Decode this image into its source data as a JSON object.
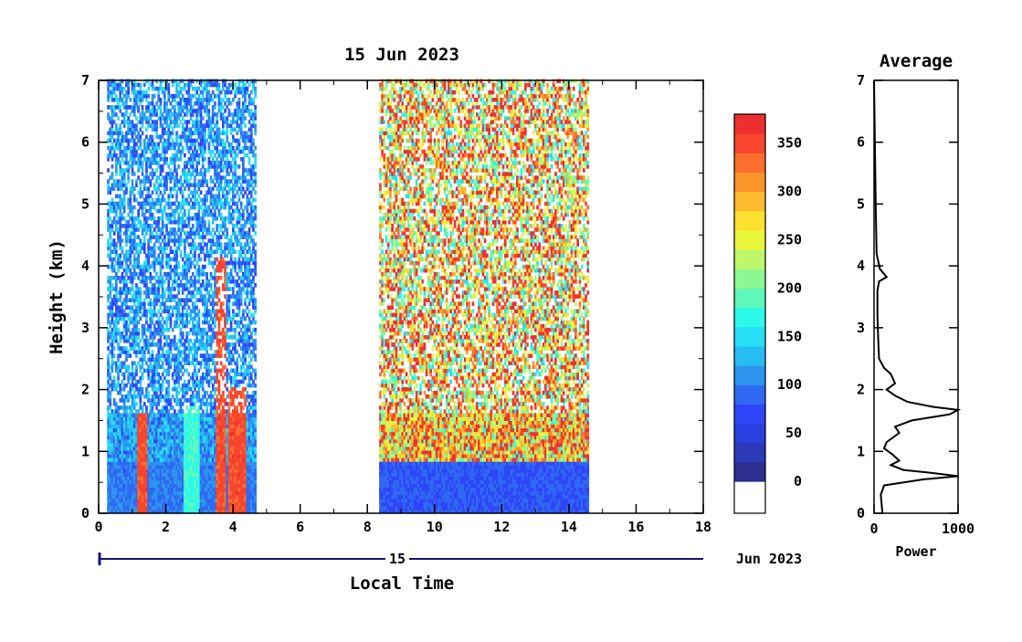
{
  "colors": {
    "bins": [
      "#2c2f8e",
      "#2b3ab6",
      "#2b3ee0",
      "#2f46f8",
      "#2f69f2",
      "#2d94f0",
      "#27bdf2",
      "#27dff4",
      "#2cf9e9",
      "#5ef9b9",
      "#8df891",
      "#bdf86a",
      "#e9f63c",
      "#fbe12e",
      "#fbbb2c",
      "#fb942b",
      "#fb6e2d",
      "#f7452e",
      "#ee2f30"
    ],
    "zero": "#ffffff",
    "axis": "#000000",
    "accent": "#16166e"
  },
  "chart_data": [
    {
      "type": "heatmap",
      "title": "15 Jun 2023",
      "xlabel": "Local Time",
      "ylabel": "Height (km)",
      "xlim": [
        0,
        18
      ],
      "ylim": [
        0,
        7
      ],
      "x_ticks": [
        "0",
        "2",
        "4",
        "6",
        "8",
        "10",
        "12",
        "14",
        "16",
        "18"
      ],
      "y_ticks": [
        "0",
        "1",
        "2",
        "3",
        "4",
        "5",
        "6",
        "7"
      ],
      "date_axis": {
        "day_label": "15",
        "month_label": "Jun 2023"
      },
      "data_segments": [
        {
          "x_start": 0.25,
          "x_end": 4.65,
          "surface_level": 60,
          "upper_level": 110,
          "note_cloud": "low"
        },
        {
          "x_start": 8.35,
          "x_end": 14.55,
          "surface_level": 40,
          "upper_level": 320
        }
      ],
      "features": [
        {
          "x_start": 1.1,
          "x_end": 1.45,
          "y_top": 1.6,
          "level": 360
        },
        {
          "x_start": 3.45,
          "x_end": 3.75,
          "y_top": 4.1,
          "level": 360
        },
        {
          "x_start": 3.85,
          "x_end": 4.35,
          "y_top": 2.0,
          "level": 360
        },
        {
          "x_start": 2.5,
          "x_end": 3.0,
          "y_top": 1.7,
          "level": 180
        }
      ],
      "colorbar": {
        "ticks": [
          "0",
          "50",
          "100",
          "150",
          "200",
          "250",
          "300",
          "350"
        ],
        "range": [
          -25,
          380
        ]
      }
    },
    {
      "type": "line",
      "title": "Average",
      "xlabel": "Power",
      "xlim": [
        0,
        1000
      ],
      "ylim": [
        0,
        7
      ],
      "x_ticks": [
        "0",
        "1000"
      ],
      "y_ticks": [
        "0",
        "1",
        "2",
        "3",
        "4",
        "5",
        "6",
        "7"
      ],
      "profile": [
        [
          100,
          0.0
        ],
        [
          80,
          0.3
        ],
        [
          120,
          0.45
        ],
        [
          600,
          0.55
        ],
        [
          1000,
          0.6
        ],
        [
          700,
          0.65
        ],
        [
          350,
          0.7
        ],
        [
          200,
          0.78
        ],
        [
          300,
          0.85
        ],
        [
          220,
          0.95
        ],
        [
          120,
          1.05
        ],
        [
          150,
          1.15
        ],
        [
          300,
          1.3
        ],
        [
          250,
          1.4
        ],
        [
          450,
          1.5
        ],
        [
          900,
          1.6
        ],
        [
          1000,
          1.67
        ],
        [
          700,
          1.72
        ],
        [
          400,
          1.8
        ],
        [
          250,
          1.9
        ],
        [
          150,
          2.0
        ],
        [
          250,
          2.1
        ],
        [
          200,
          2.25
        ],
        [
          120,
          2.35
        ],
        [
          60,
          2.5
        ],
        [
          50,
          2.8
        ],
        [
          40,
          3.2
        ],
        [
          40,
          3.6
        ],
        [
          60,
          3.75
        ],
        [
          150,
          3.82
        ],
        [
          70,
          3.95
        ],
        [
          30,
          4.2
        ],
        [
          20,
          5.0
        ],
        [
          10,
          6.0
        ],
        [
          0,
          7.0
        ]
      ]
    }
  ]
}
